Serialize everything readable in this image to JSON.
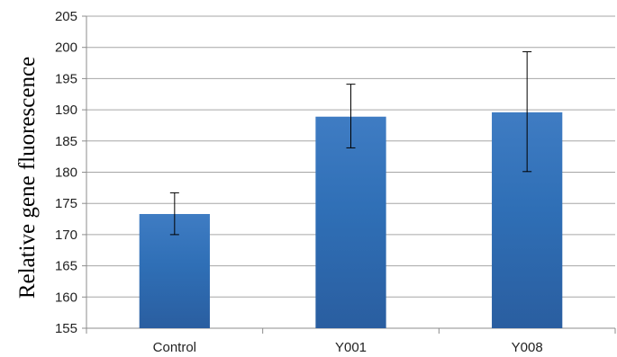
{
  "chart_data": {
    "type": "bar",
    "categories": [
      "Control",
      "Y001",
      "Y008"
    ],
    "values": [
      173.3,
      188.9,
      189.6
    ],
    "error_low": [
      170.0,
      183.9,
      180.1
    ],
    "error_high": [
      176.7,
      194.1,
      199.3
    ],
    "ylabel": "Relative gene fluorescence",
    "xlabel": "",
    "ylim": [
      155,
      205
    ],
    "y_ticks": [
      155,
      160,
      165,
      170,
      175,
      180,
      185,
      190,
      195,
      200,
      205
    ],
    "grid": true,
    "bar_color": "#2e6db4",
    "bar_color_light": "#4a86c6"
  }
}
